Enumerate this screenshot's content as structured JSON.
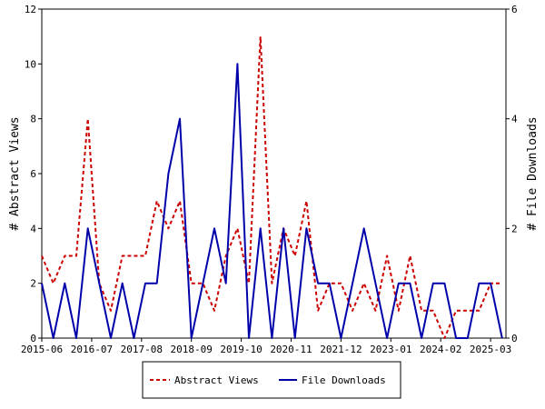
{
  "chart_data": {
    "type": "line",
    "title": "",
    "xlabel": "",
    "ylabel_left": "# Abstract Views",
    "ylabel_right": "# File Downloads",
    "ylim_left": [
      0,
      12
    ],
    "ylim_right": [
      0,
      6
    ],
    "yticks_left": [
      "0",
      "2",
      "4",
      "6",
      "8",
      "10",
      "12"
    ],
    "yticks_right": [
      "0",
      "2",
      "4",
      "6"
    ],
    "x_start": "2015-06",
    "x_end": "2025-07",
    "x_tick_labels": [
      "2015-06",
      "2016-07",
      "2017-08",
      "2018-09",
      "2019-10",
      "2020-11",
      "2021-12",
      "2023-01",
      "2024-02",
      "2025-03"
    ],
    "grid": false,
    "legend_position": "bottom",
    "series": [
      {
        "name": "Abstract Views",
        "axis": "left",
        "color": "#cc0000",
        "style": "dashed",
        "x": [
          "2015-06",
          "2015-09",
          "2015-12",
          "2016-03",
          "2016-06",
          "2016-09",
          "2016-12",
          "2017-03",
          "2017-06",
          "2017-09",
          "2017-12",
          "2018-03",
          "2018-06",
          "2018-09",
          "2018-12",
          "2019-03",
          "2019-06",
          "2019-09",
          "2019-12",
          "2020-03",
          "2020-06",
          "2020-09",
          "2020-12",
          "2021-03",
          "2021-06",
          "2021-09",
          "2021-12",
          "2022-03",
          "2022-06",
          "2022-09",
          "2022-12",
          "2023-03",
          "2023-06",
          "2023-09",
          "2023-12",
          "2024-03",
          "2024-06",
          "2024-09",
          "2024-12",
          "2025-03",
          "2025-06"
        ],
        "values": [
          3,
          2,
          3,
          3,
          8,
          2,
          1,
          3,
          3,
          3,
          5,
          4,
          5,
          2,
          2,
          1,
          3,
          4,
          2,
          11,
          2,
          4,
          3,
          5,
          1,
          2,
          2,
          1,
          2,
          1,
          3,
          1,
          3,
          1,
          1,
          0,
          1,
          1,
          1,
          2,
          2
        ]
      },
      {
        "name": "File Downloads",
        "axis": "right",
        "color": "#0000aa",
        "style": "solid",
        "x": [
          "2015-06",
          "2015-09",
          "2015-12",
          "2016-03",
          "2016-06",
          "2016-09",
          "2016-12",
          "2017-03",
          "2017-06",
          "2017-09",
          "2017-12",
          "2018-03",
          "2018-06",
          "2018-09",
          "2018-12",
          "2019-03",
          "2019-06",
          "2019-09",
          "2019-12",
          "2020-03",
          "2020-06",
          "2020-09",
          "2020-12",
          "2021-03",
          "2021-06",
          "2021-09",
          "2021-12",
          "2022-03",
          "2022-06",
          "2022-09",
          "2022-12",
          "2023-03",
          "2023-06",
          "2023-09",
          "2023-12",
          "2024-03",
          "2024-06",
          "2024-09",
          "2024-12",
          "2025-03",
          "2025-06"
        ],
        "values": [
          1,
          0,
          1,
          0,
          2,
          1,
          0,
          1,
          0,
          1,
          1,
          3,
          4,
          0,
          1,
          2,
          1,
          5,
          0,
          2,
          0,
          2,
          0,
          2,
          1,
          1,
          0,
          1,
          2,
          1,
          0,
          1,
          1,
          0,
          1,
          1,
          0,
          0,
          1,
          1,
          0
        ]
      }
    ]
  }
}
